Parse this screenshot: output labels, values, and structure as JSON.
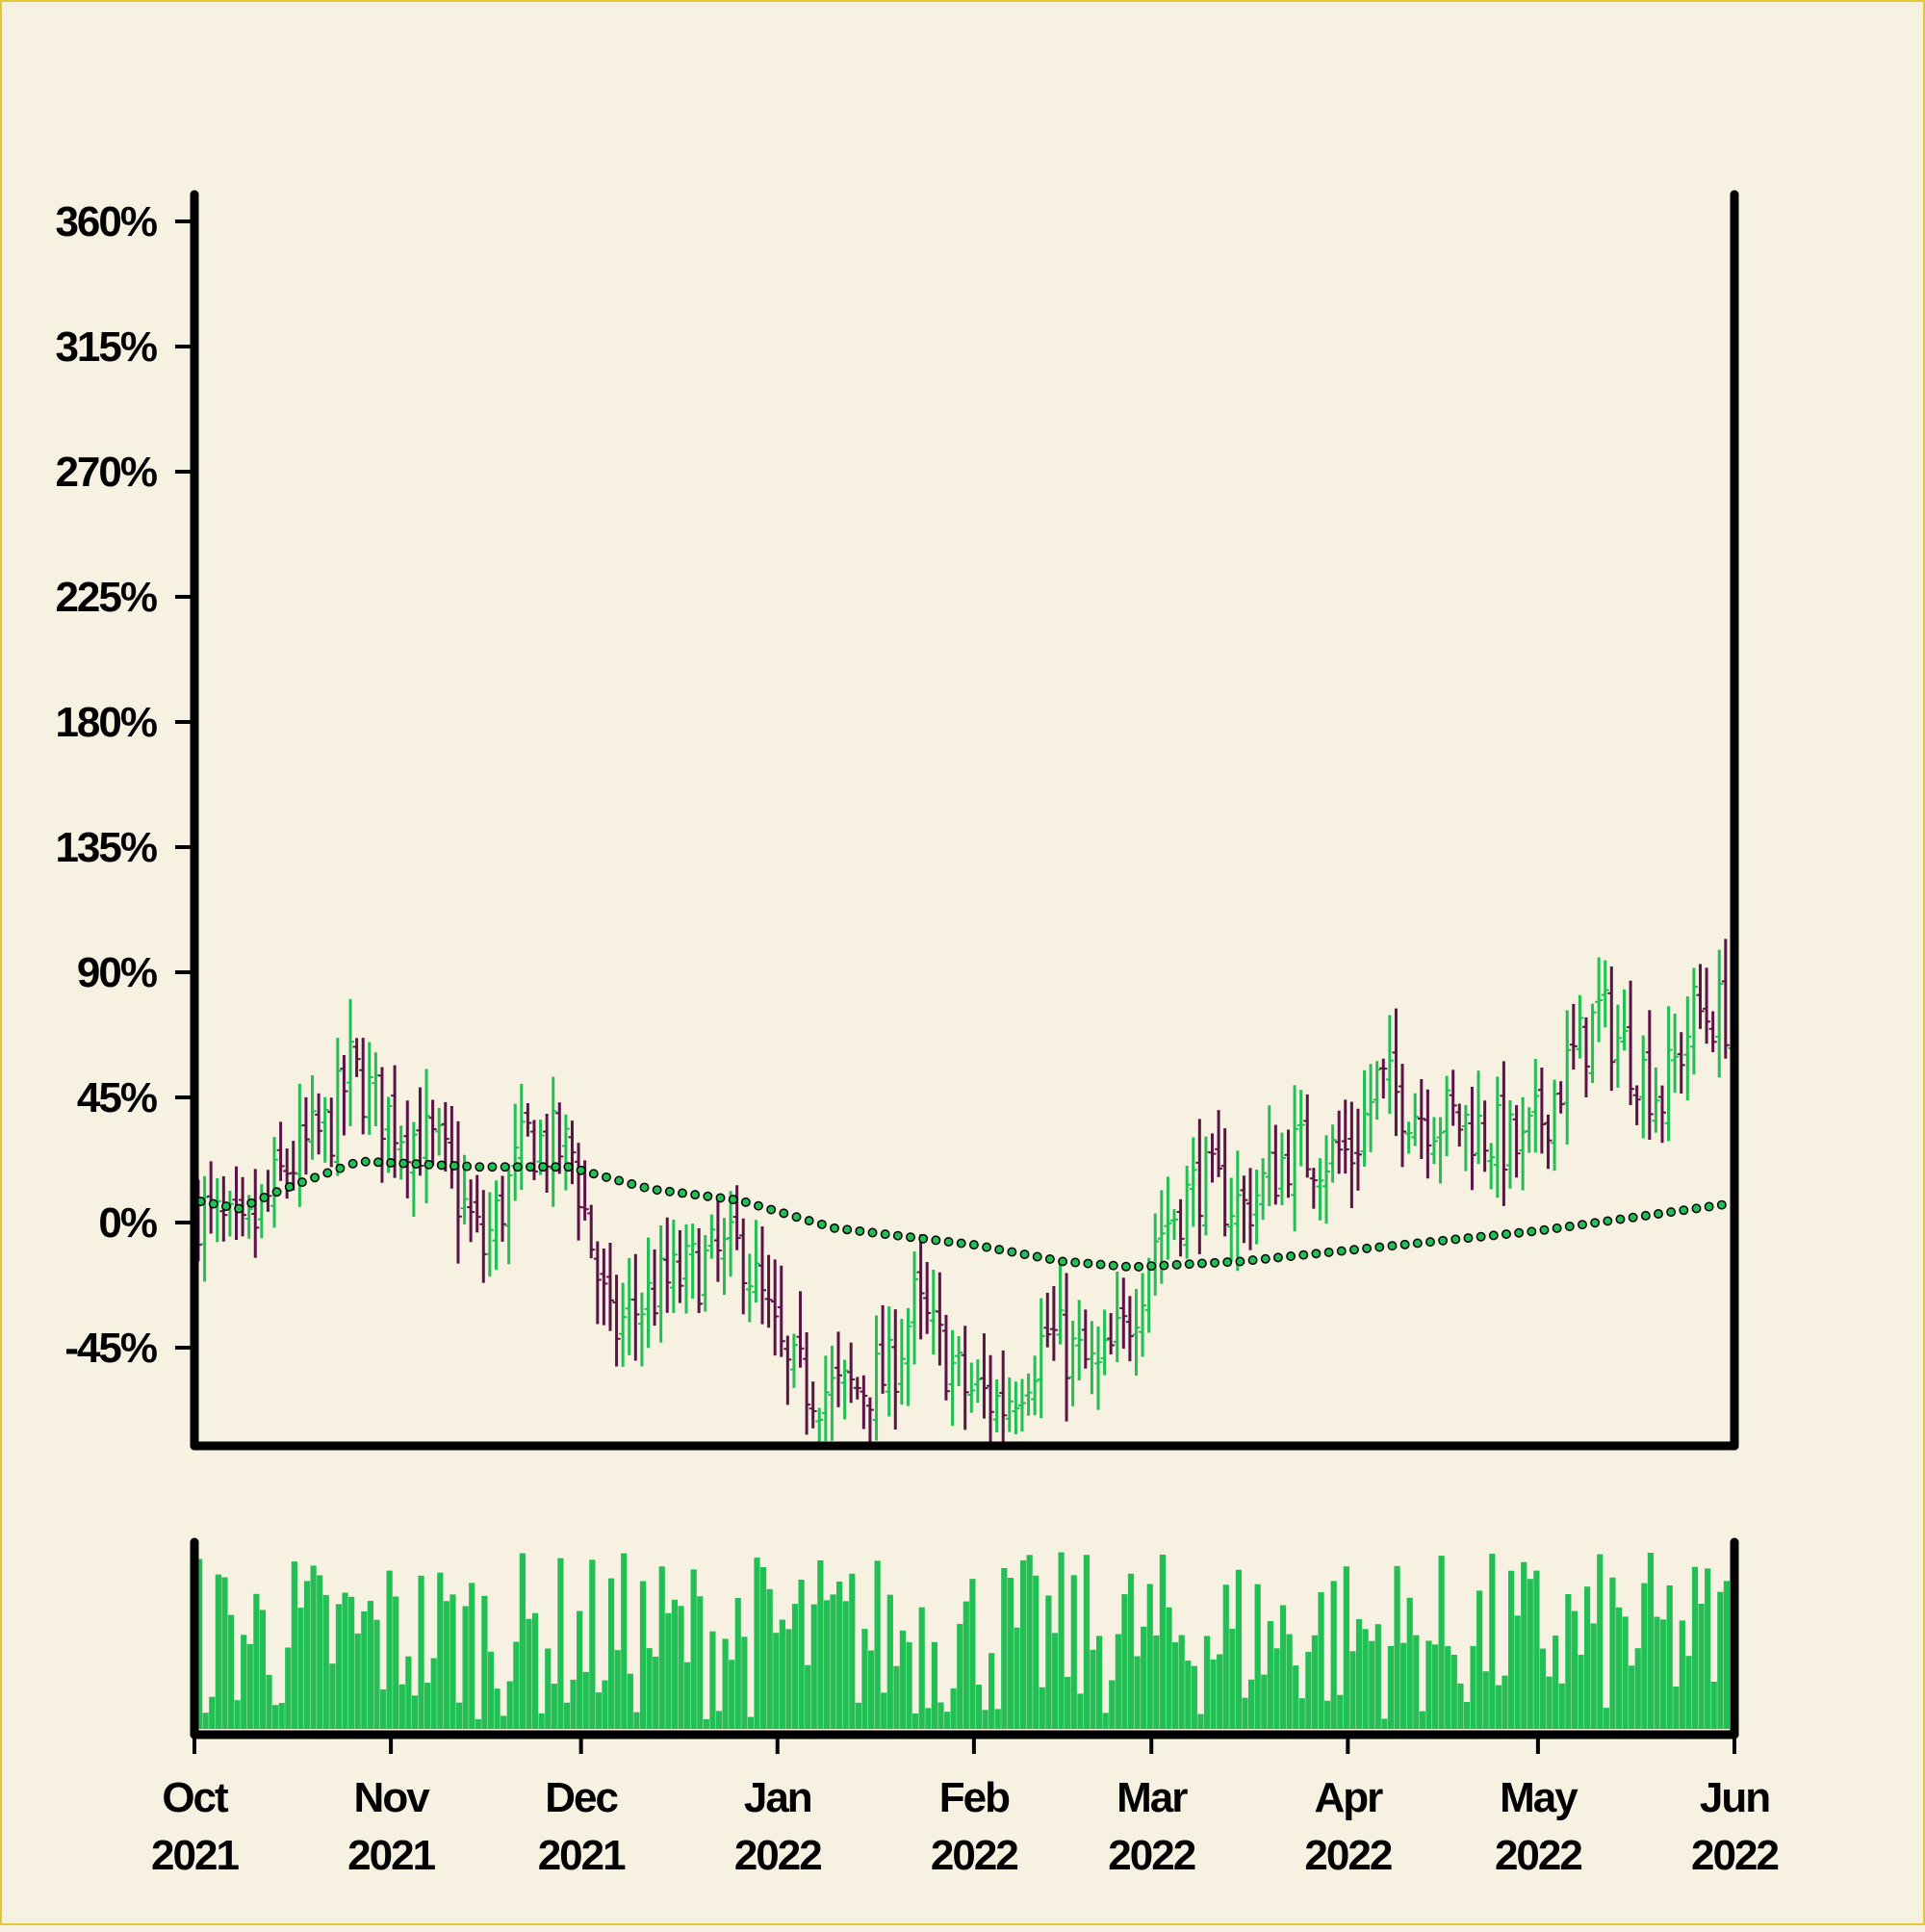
{
  "colors": {
    "background": "#f6f1e1",
    "border": "#e2c93a",
    "up": "#22bf55",
    "down": "#5c1347",
    "volume": "#22bf55",
    "ma_fill": "#22bf55",
    "axis": "#000000"
  },
  "chart_data": {
    "type": "ohlc",
    "title": "",
    "xlabel": "",
    "ylabel": "",
    "x_range": [
      "2021-10-01",
      "2022-06-01"
    ],
    "ylim": [
      -70,
      375
    ],
    "y_ticks": [
      {
        "value": 360,
        "label": "360%"
      },
      {
        "value": 315,
        "label": "315%"
      },
      {
        "value": 270,
        "label": "270%"
      },
      {
        "value": 225,
        "label": "225%"
      },
      {
        "value": 180,
        "label": "180%"
      },
      {
        "value": 135,
        "label": "135%"
      },
      {
        "value": 90,
        "label": "90%"
      },
      {
        "value": 45,
        "label": "45%"
      },
      {
        "value": 0,
        "label": "0%"
      },
      {
        "value": -45,
        "label": "-45%"
      }
    ],
    "x_ticks": [
      {
        "date": "2021-10-01",
        "month": "Oct",
        "year": "2021"
      },
      {
        "date": "2021-11-01",
        "month": "Nov",
        "year": "2021"
      },
      {
        "date": "2021-12-01",
        "month": "Dec",
        "year": "2021"
      },
      {
        "date": "2022-01-01",
        "month": "Jan",
        "year": "2022"
      },
      {
        "date": "2022-02-01",
        "month": "Feb",
        "year": "2022"
      },
      {
        "date": "2022-03-01",
        "month": "Mar",
        "year": "2022"
      },
      {
        "date": "2022-04-01",
        "month": "Apr",
        "year": "2022"
      },
      {
        "date": "2022-05-01",
        "month": "May",
        "year": "2022"
      },
      {
        "date": "2022-06-01",
        "month": "Jun",
        "year": "2022"
      }
    ],
    "grid": false,
    "close_anchors": [
      {
        "date": "2021-10-01",
        "close": 5
      },
      {
        "date": "2021-10-08",
        "close": -8
      },
      {
        "date": "2021-10-15",
        "close": 20
      },
      {
        "date": "2021-10-22",
        "close": 35
      },
      {
        "date": "2021-10-25",
        "close": 55
      },
      {
        "date": "2021-10-30",
        "close": 40
      },
      {
        "date": "2021-11-08",
        "close": 25
      },
      {
        "date": "2021-11-15",
        "close": -10
      },
      {
        "date": "2021-11-22",
        "close": 30
      },
      {
        "date": "2021-11-29",
        "close": 25
      },
      {
        "date": "2021-12-05",
        "close": -40
      },
      {
        "date": "2021-12-12",
        "close": -25
      },
      {
        "date": "2021-12-20",
        "close": -15
      },
      {
        "date": "2021-12-26",
        "close": -10
      },
      {
        "date": "2022-01-02",
        "close": -55
      },
      {
        "date": "2022-01-10",
        "close": -62
      },
      {
        "date": "2022-01-18",
        "close": -55
      },
      {
        "date": "2022-01-22",
        "close": -30
      },
      {
        "date": "2022-01-30",
        "close": -60
      },
      {
        "date": "2022-02-05",
        "close": -65
      },
      {
        "date": "2022-02-12",
        "close": -40
      },
      {
        "date": "2022-02-20",
        "close": -55
      },
      {
        "date": "2022-02-24",
        "close": -40
      },
      {
        "date": "2022-03-01",
        "close": -5
      },
      {
        "date": "2022-03-08",
        "close": 15
      },
      {
        "date": "2022-03-15",
        "close": 5
      },
      {
        "date": "2022-03-22",
        "close": 25
      },
      {
        "date": "2022-04-01",
        "close": 25
      },
      {
        "date": "2022-04-05",
        "close": 50
      },
      {
        "date": "2022-04-12",
        "close": 40
      },
      {
        "date": "2022-04-20",
        "close": 35
      },
      {
        "date": "2022-04-28",
        "close": 25
      },
      {
        "date": "2022-05-05",
        "close": 55
      },
      {
        "date": "2022-05-10",
        "close": 75
      },
      {
        "date": "2022-05-15",
        "close": 60
      },
      {
        "date": "2022-05-20",
        "close": 45
      },
      {
        "date": "2022-05-25",
        "close": 75
      },
      {
        "date": "2022-06-01",
        "close": 75
      }
    ],
    "moving_average": [
      {
        "date": "2021-10-01",
        "value": 8
      },
      {
        "date": "2021-10-08",
        "value": 5
      },
      {
        "date": "2021-10-15",
        "value": 12
      },
      {
        "date": "2021-10-27",
        "value": 22
      },
      {
        "date": "2021-11-15",
        "value": 20
      },
      {
        "date": "2021-11-29",
        "value": 20
      },
      {
        "date": "2021-12-12",
        "value": 12
      },
      {
        "date": "2021-12-26",
        "value": 8
      },
      {
        "date": "2022-01-10",
        "value": -2
      },
      {
        "date": "2022-02-01",
        "value": -8
      },
      {
        "date": "2022-02-15",
        "value": -14
      },
      {
        "date": "2022-02-26",
        "value": -16
      },
      {
        "date": "2022-03-15",
        "value": -14
      },
      {
        "date": "2022-04-01",
        "value": -10
      },
      {
        "date": "2022-05-01",
        "value": -3
      },
      {
        "date": "2022-06-01",
        "value": 7
      }
    ]
  }
}
